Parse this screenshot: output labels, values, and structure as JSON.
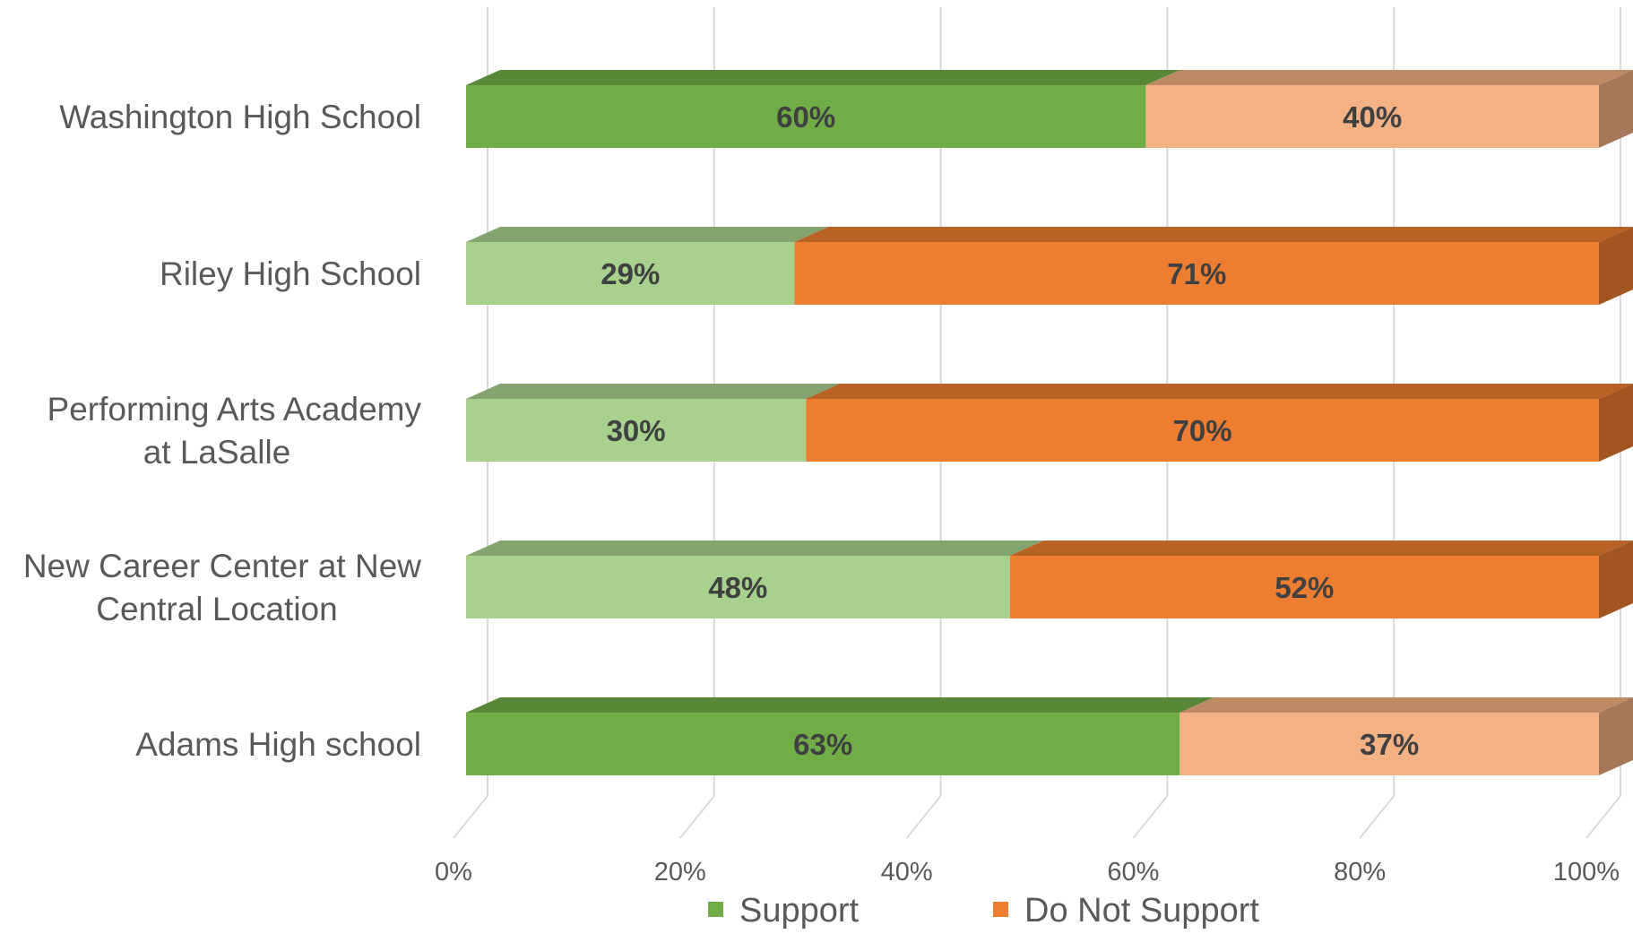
{
  "chart_data": {
    "type": "bar",
    "orientation": "horizontal",
    "stacked": "100%",
    "three_d": true,
    "categories": [
      "Washington High School",
      "Riley High School",
      "Performing Arts Academy at LaSalle",
      "New Career Center at New Central Location",
      "Adams High school"
    ],
    "category_lines": [
      [
        "Washington High School"
      ],
      [
        "Riley High School"
      ],
      [
        "Performing Arts Academy",
        "at LaSalle"
      ],
      [
        "New Career Center at New",
        "Central Location"
      ],
      [
        "Adams High school"
      ]
    ],
    "series": [
      {
        "name": "Support",
        "values": [
          60,
          29,
          30,
          48,
          63
        ],
        "labels": [
          "60%",
          "29%",
          "30%",
          "48%",
          "63%"
        ],
        "color": "#70ad47"
      },
      {
        "name": "Do Not Support",
        "values": [
          40,
          71,
          70,
          52,
          37
        ],
        "labels": [
          "40%",
          "71%",
          "70%",
          "52%",
          "37%"
        ],
        "color": "#ed7d31"
      }
    ],
    "point_colors": {
      "Support": [
        "#70ad47",
        "#a9d18e",
        "#a9d18e",
        "#a9d18e",
        "#70ad47"
      ],
      "Do Not Support": [
        "#f4b183",
        "#ed7d31",
        "#ed7d31",
        "#ed7d31",
        "#f4b183"
      ]
    },
    "xlim": [
      0,
      100
    ],
    "x_ticks": [
      0,
      20,
      40,
      60,
      80,
      100
    ],
    "x_tick_labels": [
      "0%",
      "20%",
      "40%",
      "60%",
      "80%",
      "100%"
    ],
    "xlabel": "",
    "ylabel": "",
    "title": "",
    "grid": true,
    "legend": {
      "position": "bottom",
      "entries": [
        "Support",
        "Do Not Support"
      ]
    }
  }
}
